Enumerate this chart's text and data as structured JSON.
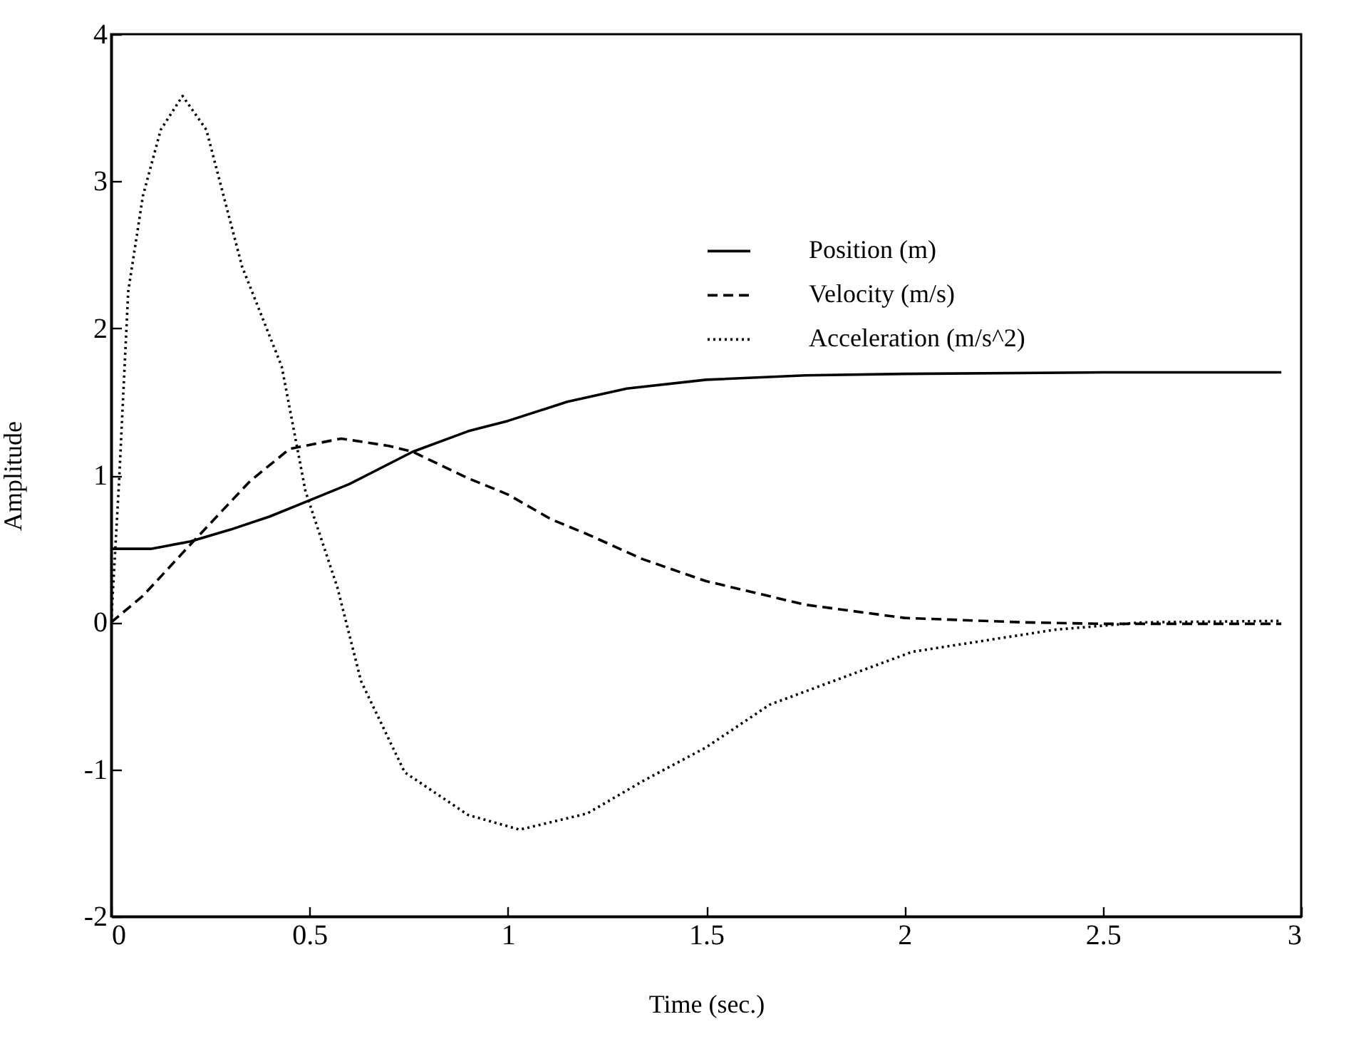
{
  "chart_data": {
    "type": "line",
    "xlabel": "Time (sec.)",
    "ylabel": "Amplitude",
    "xlim": [
      0,
      3
    ],
    "xticks": [
      0,
      0.5,
      1,
      1.5,
      2,
      2.5,
      3
    ],
    "ylim": [
      -2,
      4
    ],
    "yticks": [
      -2,
      -1,
      0,
      1,
      2,
      3,
      4
    ],
    "grid": false,
    "legend": "top right",
    "series": [
      {
        "name": "Position (m)",
        "color": "#000000",
        "line_style": "solid",
        "x": [
          0,
          0.1,
          0.2,
          0.3,
          0.4,
          0.5,
          0.6,
          0.76,
          0.9,
          1.0,
          1.15,
          1.3,
          1.5,
          1.75,
          2.0,
          2.5,
          2.95
        ],
        "values": [
          0.5,
          0.5,
          0.55,
          0.63,
          0.72,
          0.83,
          0.94,
          1.16,
          1.3,
          1.37,
          1.5,
          1.59,
          1.65,
          1.68,
          1.69,
          1.7,
          1.7
        ]
      },
      {
        "name": "Velocity (m/s)",
        "color": "#000000",
        "line_style": "dashed",
        "x": [
          0,
          0.08,
          0.2,
          0.35,
          0.45,
          0.58,
          0.7,
          0.76,
          0.9,
          1.0,
          1.11,
          1.2,
          1.34,
          1.5,
          1.75,
          2.0,
          2.3,
          2.5,
          2.95
        ],
        "values": [
          0,
          0.18,
          0.53,
          0.96,
          1.18,
          1.25,
          1.2,
          1.16,
          0.98,
          0.87,
          0.7,
          0.6,
          0.43,
          0.28,
          0.12,
          0.03,
          0,
          -0.01,
          -0.01
        ]
      },
      {
        "name": "Acceleration (m/s^2)",
        "color": "#000000",
        "line_style": "dotted",
        "x": [
          0,
          0.02,
          0.043,
          0.08,
          0.125,
          0.18,
          0.24,
          0.33,
          0.43,
          0.49,
          0.57,
          0.63,
          0.74,
          0.9,
          1.03,
          1.2,
          1.34,
          1.5,
          1.66,
          2.02,
          2.38,
          2.6,
          2.95
        ],
        "values": [
          0,
          0.96,
          2.25,
          2.9,
          3.35,
          3.58,
          3.35,
          2.42,
          1.74,
          0.89,
          0.24,
          -0.4,
          -1.02,
          -1.31,
          -1.41,
          -1.3,
          -1.08,
          -0.85,
          -0.56,
          -0.2,
          -0.05,
          0,
          0.01
        ]
      }
    ]
  }
}
